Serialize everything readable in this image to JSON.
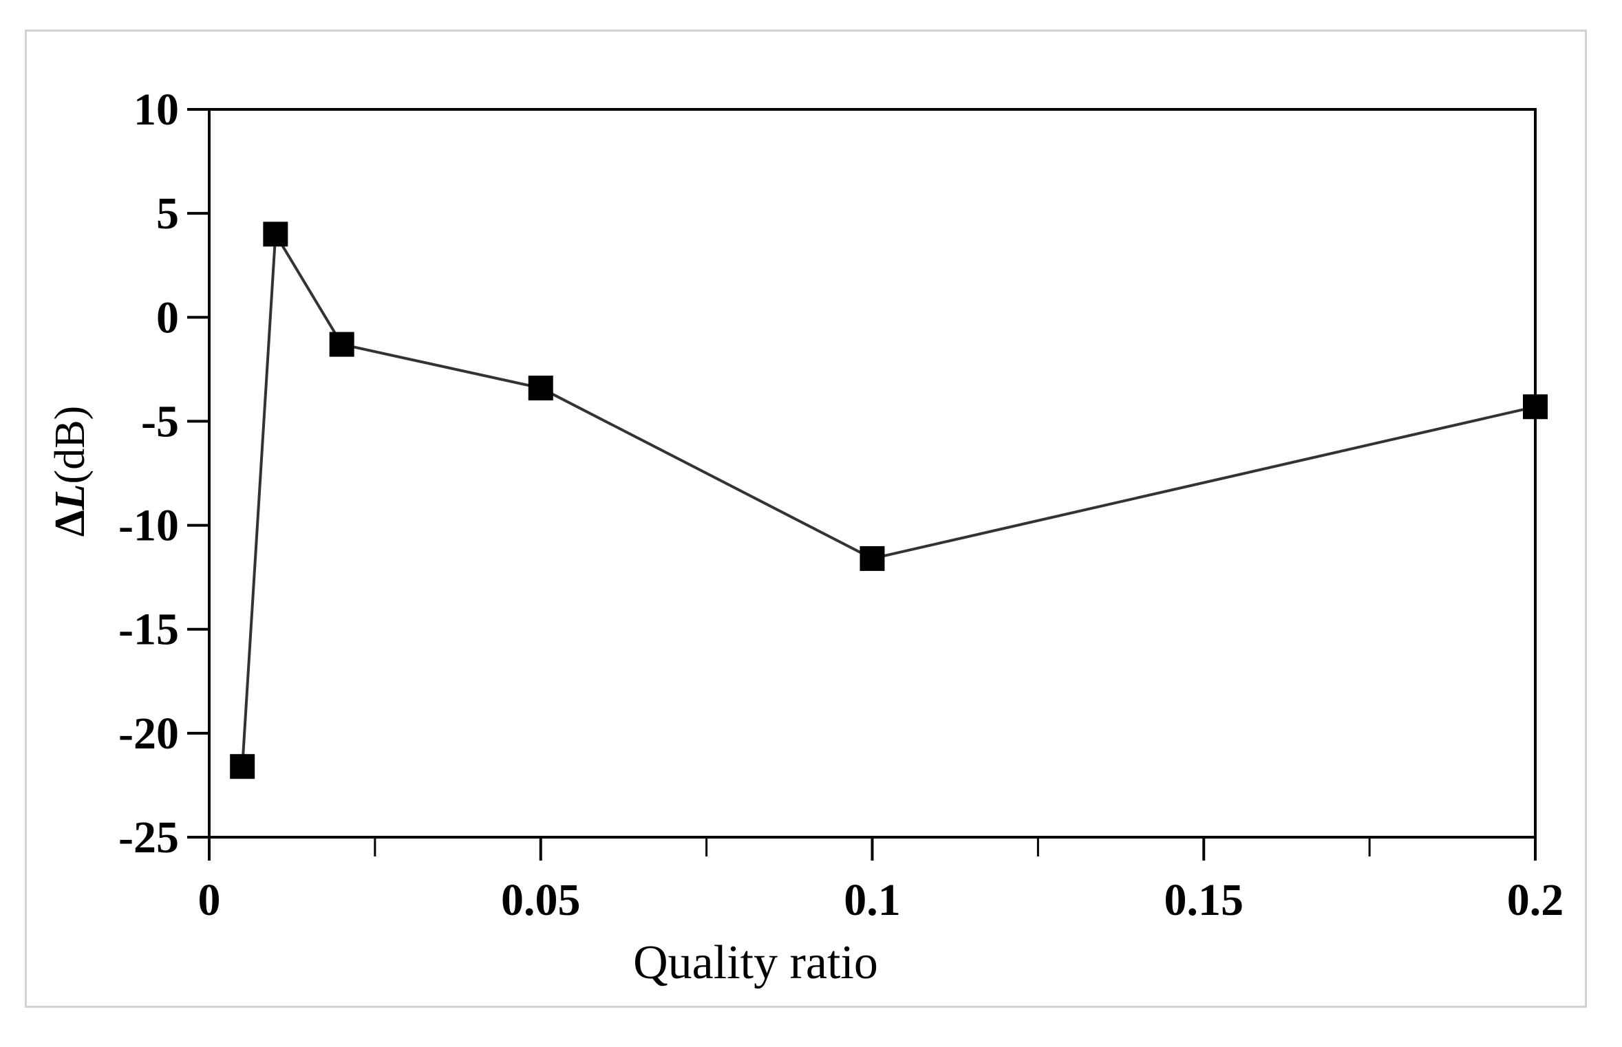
{
  "chart_data": {
    "type": "line",
    "title": "",
    "xlabel": "Quality ratio",
    "ylabel": "ΔL(dB)",
    "ylabel_parts": {
      "prefix": "Δ",
      "italic": "L",
      "suffix": "(dB)"
    },
    "xlim": [
      0,
      0.2
    ],
    "ylim": [
      -25,
      10
    ],
    "x_ticks": [
      0,
      0.05,
      0.1,
      0.15,
      0.2
    ],
    "x_tick_labels": [
      "0",
      "0.05",
      "0.1",
      "0.15",
      "0.2"
    ],
    "x_minor_ticks": [
      0.025,
      0.075,
      0.125,
      0.175
    ],
    "y_ticks": [
      10,
      5,
      0,
      -5,
      -10,
      -15,
      -20,
      -25
    ],
    "y_tick_labels": [
      "10",
      "5",
      "0",
      "-5",
      "-10",
      "-15",
      "-20",
      "-25"
    ],
    "grid": false,
    "legend": null,
    "series": [
      {
        "name": "ΔL",
        "marker": "square",
        "color": "#000000",
        "x": [
          0.005,
          0.01,
          0.02,
          0.05,
          0.1,
          0.2
        ],
        "y": [
          -21.6,
          4.0,
          -1.3,
          -3.4,
          -11.6,
          -4.3
        ]
      }
    ]
  },
  "colors": {
    "frame": "#d2d2d2",
    "axis": "#000000",
    "line": "#333333",
    "marker": "#000000"
  }
}
